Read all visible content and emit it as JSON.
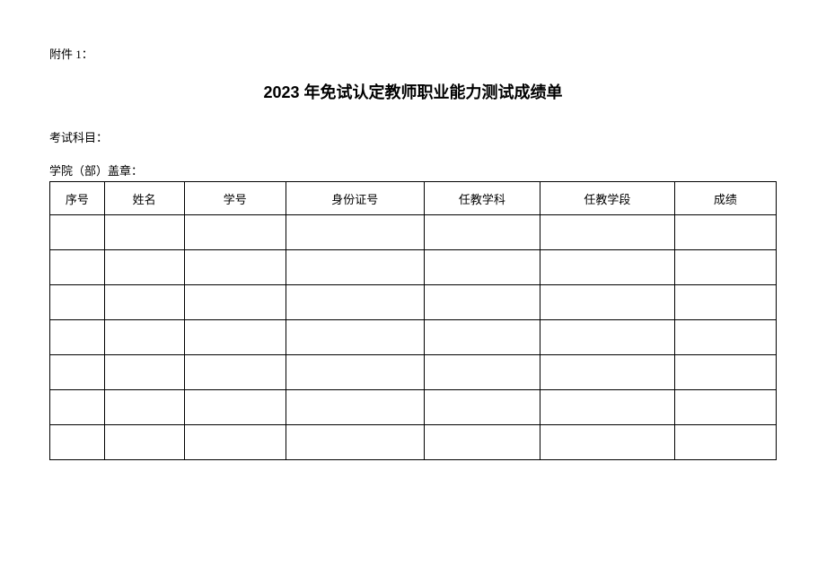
{
  "attachment_label": "附件 1：",
  "title": "2023 年免试认定教师职业能力测试成绩单",
  "exam_subject_label": "考试科目：",
  "college_stamp_label": "学院（部）盖章：",
  "table": {
    "columns": [
      "序号",
      "姓名",
      "学号",
      "身份证号",
      "任教学科",
      "任教学段",
      "成绩"
    ],
    "column_widths_pct": [
      7.5,
      11,
      14,
      19,
      16,
      18.5,
      14
    ],
    "rows": [
      [
        "",
        "",
        "",
        "",
        "",
        "",
        ""
      ],
      [
        "",
        "",
        "",
        "",
        "",
        "",
        ""
      ],
      [
        "",
        "",
        "",
        "",
        "",
        "",
        ""
      ],
      [
        "",
        "",
        "",
        "",
        "",
        "",
        ""
      ],
      [
        "",
        "",
        "",
        "",
        "",
        "",
        ""
      ],
      [
        "",
        "",
        "",
        "",
        "",
        "",
        ""
      ],
      [
        "",
        "",
        "",
        "",
        "",
        "",
        ""
      ]
    ],
    "border_color": "#000000",
    "text_color": "#000000",
    "font_size": 13,
    "header_row_height": 37,
    "body_row_height": 39
  },
  "background_color": "#ffffff"
}
